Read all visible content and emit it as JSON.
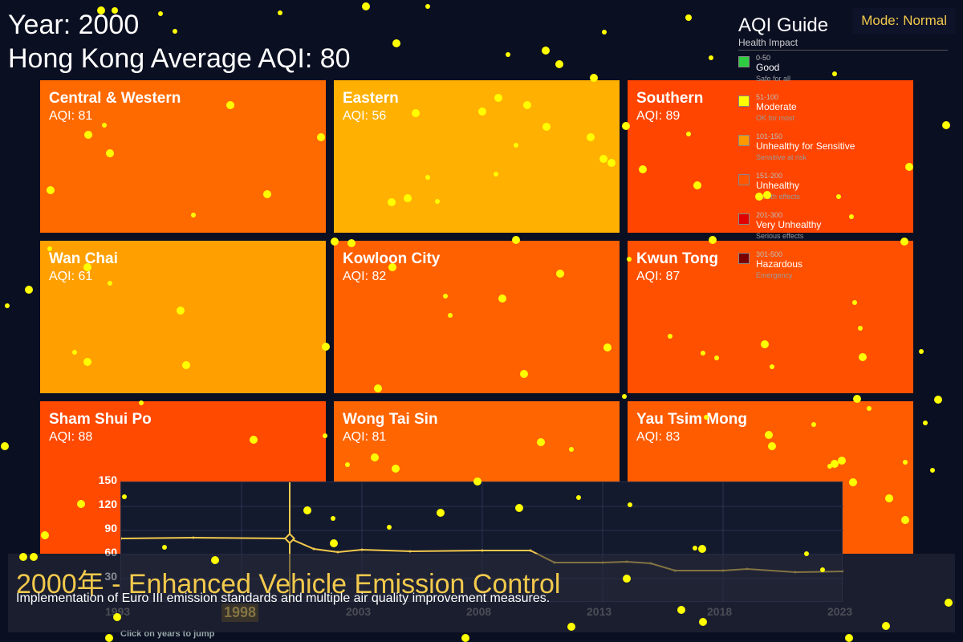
{
  "header": {
    "year_text": "Year: 2000",
    "average_text": "Hong Kong Average AQI: 80"
  },
  "mode_badge": "Mode: Normal",
  "districts": [
    {
      "name": "Central & Western",
      "aqi_text": "AQI: 81",
      "color": "#ff6a00"
    },
    {
      "name": "Eastern",
      "aqi_text": "AQI: 56",
      "color": "#ffb000"
    },
    {
      "name": "Southern",
      "aqi_text": "AQI: 89",
      "color": "#ff4500"
    },
    {
      "name": "Wan Chai",
      "aqi_text": "AQI: 61",
      "color": "#ffa000"
    },
    {
      "name": "Kowloon City",
      "aqi_text": "AQI: 82",
      "color": "#ff6000"
    },
    {
      "name": "Kwun Tong",
      "aqi_text": "AQI: 87",
      "color": "#ff5000"
    },
    {
      "name": "Sham Shui Po",
      "aqi_text": "AQI: 88",
      "color": "#ff4a00"
    },
    {
      "name": "Wong Tai Sin",
      "aqi_text": "AQI: 81",
      "color": "#ff6500"
    },
    {
      "name": "Yau Tsim Mong",
      "aqi_text": "AQI: 83",
      "color": "#ff5c00"
    }
  ],
  "guide": {
    "title": "AQI Guide",
    "subtitle": "Health Impact",
    "items": [
      {
        "range": "0-50",
        "label": "Good",
        "desc": "Safe for all",
        "color": "#2ecc40"
      },
      {
        "range": "51-100",
        "label": "Moderate",
        "desc": "OK for most",
        "color": "#ffff00"
      },
      {
        "range": "101-150",
        "label": "Unhealthy for Sensitive",
        "desc": "Sensitive at risk",
        "color": "#ff9900"
      },
      {
        "range": "151-200",
        "label": "Unhealthy",
        "desc": "Health effects",
        "color": "#ff5500"
      },
      {
        "range": "201-300",
        "label": "Very Unhealthy",
        "desc": "Serious effects",
        "color": "#e00000"
      },
      {
        "range": "301-500",
        "label": "Hazardous",
        "desc": "Emergency",
        "color": "#7a0000"
      }
    ]
  },
  "timeline": {
    "y_ticks": [
      "150",
      "120",
      "90",
      "60",
      "30"
    ],
    "x_ticks": [
      "1993",
      "1998",
      "2003",
      "2008",
      "2013",
      "2018",
      "2023"
    ],
    "hint": "Click on years to jump",
    "selected_year": 2000,
    "line_color": "#f2c94c"
  },
  "chart_data": {
    "type": "line",
    "title": "",
    "xlabel": "",
    "ylabel": "",
    "ylim": [
      0,
      150
    ],
    "xlim": [
      1993,
      2023
    ],
    "x": [
      1993,
      1996,
      2000,
      2001,
      2002,
      2003,
      2005,
      2008,
      2010,
      2011,
      2013,
      2014,
      2015,
      2016,
      2018,
      2019,
      2021,
      2023
    ],
    "series": [
      {
        "values": [
          80,
          81,
          80,
          67,
          63,
          66,
          64,
          65,
          65,
          50,
          50,
          51,
          49,
          40,
          40,
          42,
          38,
          39
        ]
      }
    ]
  },
  "event": {
    "title": "2000年 - Enhanced Vehicle Emission Control",
    "description": "Implementation of Euro III emission standards and multiple air quality improvement measures."
  }
}
